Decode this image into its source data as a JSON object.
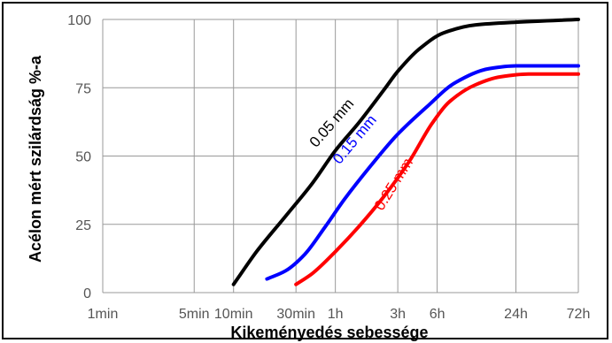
{
  "chart_data": {
    "type": "line",
    "xlabel": "Kikeményedés sebessége",
    "ylabel": "Acélon mért szilárdság %-a",
    "x_ticks": [
      "1min",
      "5min",
      "10min",
      "30min",
      "1h",
      "3h",
      "6h",
      "24h",
      "72h"
    ],
    "x_tick_minutes": [
      1,
      5,
      10,
      30,
      60,
      180,
      360,
      1440,
      4320
    ],
    "x_scale": "log",
    "y_ticks": [
      "0",
      "25",
      "50",
      "75",
      "100"
    ],
    "ylim": [
      0,
      100
    ],
    "grid": true,
    "series": [
      {
        "name": "0.05 mm",
        "color": "#000000",
        "points": [
          [
            10,
            3
          ],
          [
            15,
            15
          ],
          [
            25,
            28
          ],
          [
            40,
            40
          ],
          [
            60,
            52
          ],
          [
            90,
            62
          ],
          [
            140,
            74
          ],
          [
            180,
            81
          ],
          [
            260,
            89
          ],
          [
            400,
            95
          ],
          [
            700,
            98
          ],
          [
            1440,
            99
          ],
          [
            4320,
            100
          ]
        ]
      },
      {
        "name": "0.15 mm",
        "color": "#0000ff",
        "points": [
          [
            18,
            5
          ],
          [
            25,
            8
          ],
          [
            35,
            14
          ],
          [
            50,
            24
          ],
          [
            70,
            34
          ],
          [
            110,
            46
          ],
          [
            180,
            58
          ],
          [
            300,
            68
          ],
          [
            500,
            77
          ],
          [
            900,
            82
          ],
          [
            1440,
            83
          ],
          [
            4320,
            83
          ]
        ]
      },
      {
        "name": "0.25 mm",
        "color": "#ff0000",
        "points": [
          [
            30,
            3
          ],
          [
            40,
            7
          ],
          [
            60,
            15
          ],
          [
            90,
            24
          ],
          [
            140,
            35
          ],
          [
            220,
            48
          ],
          [
            330,
            62
          ],
          [
            450,
            70
          ],
          [
            700,
            76
          ],
          [
            1100,
            79
          ],
          [
            1800,
            80
          ],
          [
            4320,
            80
          ]
        ]
      }
    ]
  }
}
